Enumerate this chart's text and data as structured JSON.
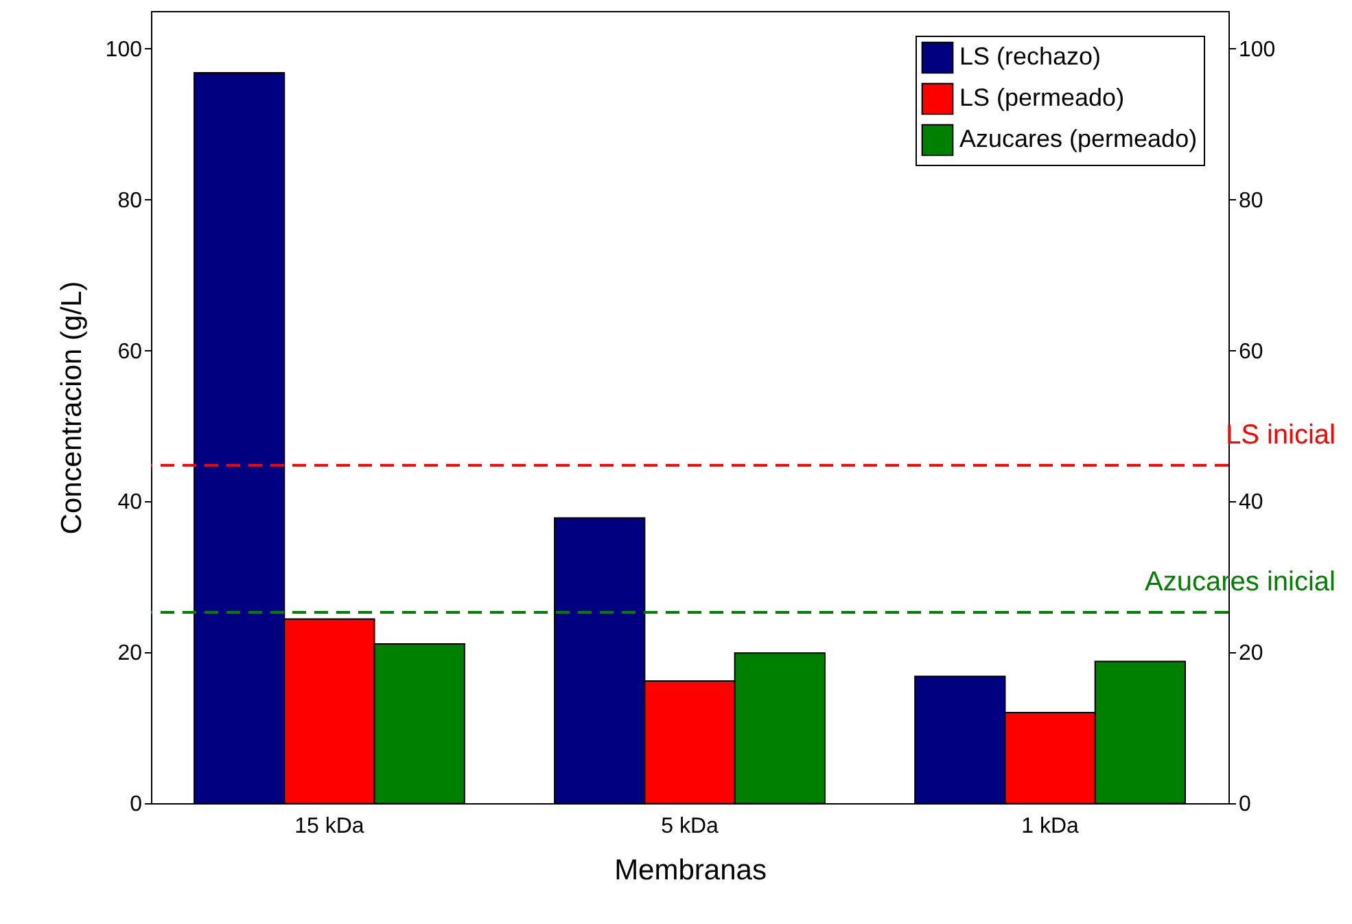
{
  "chart_data": {
    "type": "bar",
    "xlabel": "Membranas",
    "ylabel": "Concentracion (g/L)",
    "categories": [
      "15 kDa",
      "5 kDa",
      "1 kDa"
    ],
    "series": [
      {
        "name": "LS (rechazo)",
        "color": "#000080",
        "values": [
          96.8,
          37.8,
          16.8
        ]
      },
      {
        "name": "LS (permeado)",
        "color": "#ff0000",
        "values": [
          24.4,
          16.2,
          12.0
        ]
      },
      {
        "name": "Azucares (permeado)",
        "color": "#008000",
        "values": [
          21.1,
          19.9,
          18.8
        ]
      }
    ],
    "ylim": [
      0,
      105
    ],
    "yticks": [
      0,
      20,
      40,
      60,
      80,
      100
    ],
    "y2lim": [
      0,
      105
    ],
    "y2ticks": [
      0,
      20,
      40,
      60,
      80,
      100
    ],
    "ref_lines": [
      {
        "axis": "y",
        "value": 44.8,
        "label": "LS inicial",
        "color": "#ff0000",
        "line_style": "dashed"
      },
      {
        "axis": "y",
        "value": 25.3,
        "label": "Azucares inicial",
        "color": "#008000",
        "line_style": "dashed"
      }
    ],
    "legend": "top right",
    "grid": false
  }
}
